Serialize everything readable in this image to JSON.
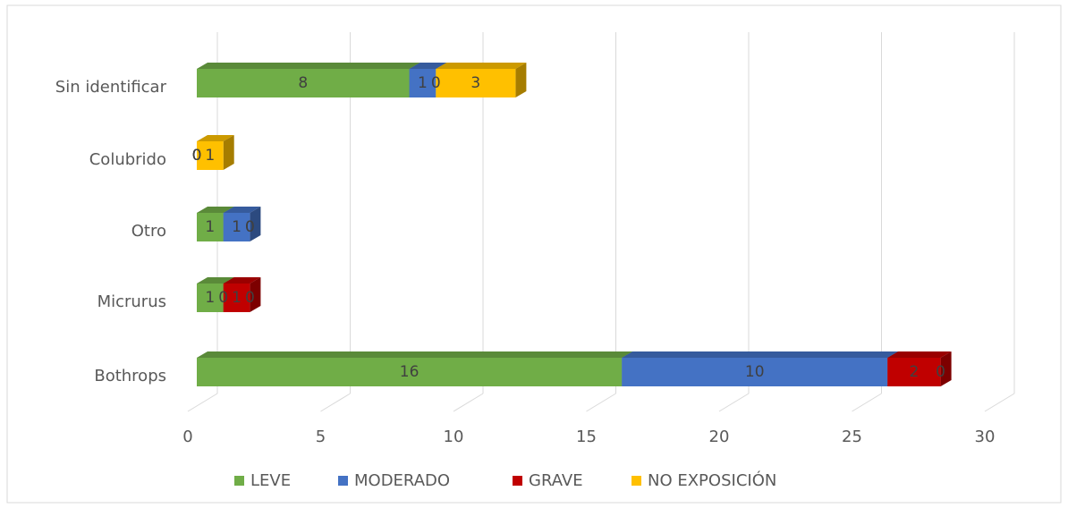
{
  "chart_data": {
    "type": "bar3d_stacked_horizontal",
    "categories": [
      "Sin identificar",
      "Colubrido",
      "Otro",
      "Micrurus",
      "Bothrops"
    ],
    "series": [
      {
        "name": "LEVE",
        "color": "#70ad47",
        "values": [
          8,
          0,
          1,
          1,
          16
        ]
      },
      {
        "name": "MODERADO",
        "color": "#4472c4",
        "values": [
          1,
          0,
          1,
          0,
          10
        ]
      },
      {
        "name": "GRAVE",
        "color": "#c00000",
        "values": [
          0,
          0,
          0,
          1,
          2
        ]
      },
      {
        "name": "NO EXPOSICIÓN",
        "color": "#ffc000",
        "values": [
          3,
          1,
          0,
          0,
          0
        ]
      }
    ],
    "xlim": [
      0,
      30
    ],
    "xticks": [
      0,
      5,
      10,
      15,
      20,
      25,
      30
    ],
    "grid": true,
    "legend": "bottom"
  }
}
